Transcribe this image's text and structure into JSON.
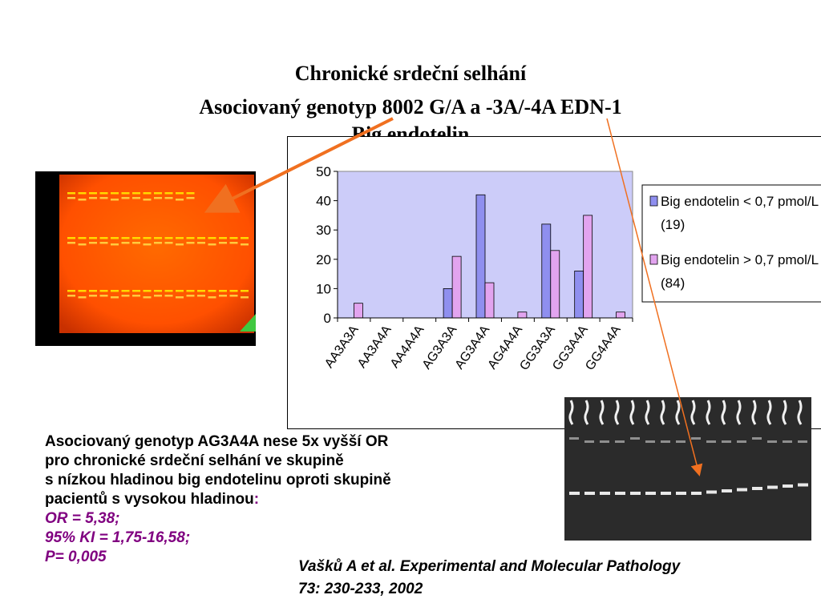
{
  "title": {
    "line1": "Chronické srdeční selhání",
    "line2": "Asociovaný genotyp 8002 G/A a -3A/-4A EDN-1",
    "line3": "Big endotelin"
  },
  "chart_data": {
    "type": "bar",
    "categories": [
      "AA3A3A",
      "AA3A4A",
      "AA4A4A",
      "AG3A3A",
      "AG3A4A",
      "AG4A4A",
      "GG3A3A",
      "GG3A4A",
      "GG4A4A"
    ],
    "series": [
      {
        "name": "Big endotelin < 0,7 pmol/L",
        "count": "(19)",
        "values": [
          0,
          0,
          0,
          10,
          42,
          0,
          32,
          16,
          0
        ],
        "color": "#8f8fef"
      },
      {
        "name": "Big endotelin > 0,7 pmol/L",
        "count": "(84)",
        "values": [
          5,
          0,
          0,
          21,
          12,
          2,
          23,
          35,
          2
        ],
        "color": "#e2a4ef"
      }
    ],
    "yticks": [
      "0",
      "10",
      "20",
      "30",
      "40",
      "50"
    ],
    "ylim": [
      0,
      50
    ],
    "plot_background": "#ccccf9",
    "legend_position": "right",
    "grid": false
  },
  "description": {
    "line1": "Asociovaný genotyp AG3A4A  nese 5x vyšší OR",
    "line2": "pro chronické srdeční selhání ve skupině",
    "line3": "s nízkou hladinou big endotelinu oproti skupině",
    "line4": "pacientů s vysokou hladinou",
    "line4_colon": ":",
    "or": "OR = 5,38;",
    "ci": "95% KI = 1,75-16,58;",
    "p": "P= 0,005"
  },
  "reference": {
    "line1": "Vašků A et al. Experimental and Molecular Pathology",
    "line2": "73: 230-233, 2002"
  },
  "colors": {
    "stat_text": "#800080",
    "arrow": "#f07020",
    "gel_left_background": "#ff5a00",
    "gel_right_background": "#2b2b2b"
  }
}
